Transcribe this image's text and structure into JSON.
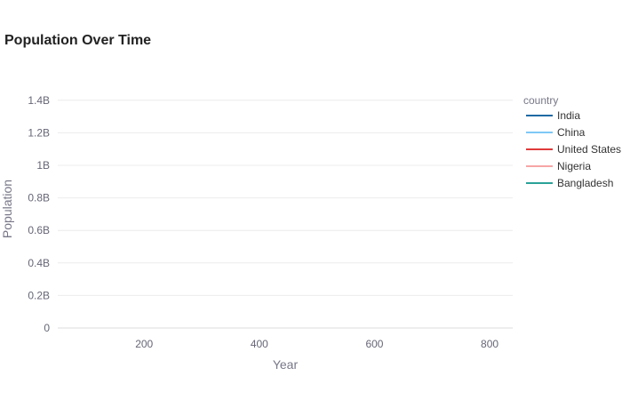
{
  "chart_data": {
    "type": "line",
    "title": "Population Over Time",
    "xlabel": "Year",
    "ylabel": "Population",
    "xlim": [
      50,
      840
    ],
    "ylim": [
      0,
      1.47
    ],
    "x_ticks": [
      200,
      400,
      600,
      800
    ],
    "x_tick_labels": [
      "200",
      "400",
      "600",
      "800"
    ],
    "y_ticks": [
      0,
      0.2,
      0.4,
      0.6,
      0.8,
      1.0,
      1.2,
      1.4
    ],
    "y_tick_labels": [
      "0",
      "0.2B",
      "0.4B",
      "0.6B",
      "0.8B",
      "1B",
      "1.2B",
      "1.4B"
    ],
    "grid": true,
    "legend": {
      "title": "country",
      "position": "right"
    },
    "series": [
      {
        "name": "India",
        "color": "#1f6aa5",
        "x": [],
        "y": []
      },
      {
        "name": "China",
        "color": "#7ec8f5",
        "x": [],
        "y": []
      },
      {
        "name": "United States",
        "color": "#e03a3a",
        "x": [],
        "y": []
      },
      {
        "name": "Nigeria",
        "color": "#f7a6a6",
        "x": [],
        "y": []
      },
      {
        "name": "Bangladesh",
        "color": "#2aa198",
        "x": [],
        "y": []
      }
    ]
  }
}
